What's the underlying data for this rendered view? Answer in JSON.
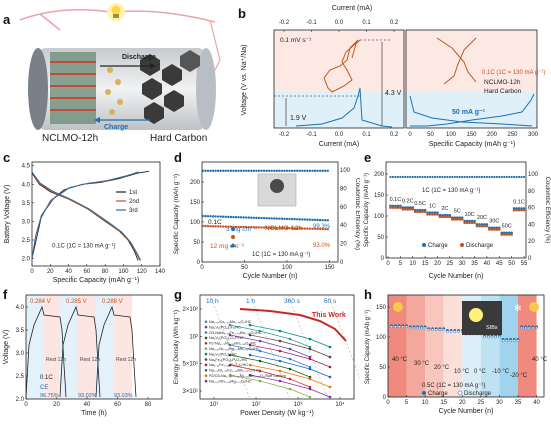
{
  "panel_labels": [
    "a",
    "b",
    "c",
    "d",
    "e",
    "f",
    "g",
    "h"
  ],
  "panel_a": {
    "discharge": "Discharge",
    "charge": "Charge",
    "left_electrode": "NCLMO-12h",
    "right_electrode": "Hard Carbon",
    "bulb_icon": "lightbulb-icon"
  },
  "chart_data": [
    {
      "id": "b",
      "type": "line",
      "title": "",
      "top_xlabel": "Current (mA)",
      "top_xticks": [
        "-0.2",
        "-0.1",
        "0.0",
        "0.1",
        "0.2"
      ],
      "xlabel_left": "Current (mA)",
      "xticks_left": [
        "-0.2",
        "-0.1",
        "0.0",
        "0.1",
        "0.2"
      ],
      "xlabel_right": "Specific Capacity (mAh g⁻¹)",
      "xticks_right": [
        "0",
        "50",
        "100",
        "150",
        "200",
        "250",
        "300"
      ],
      "ylabel": "Voltage (V vs. Na⁺/Na)",
      "annotations": [
        "0.1 mV s⁻¹",
        "4.3 V",
        "1.9 V",
        "0.1C (1C = 130 mA g⁻¹)",
        "NCLMO-12h",
        "Hard Carbon",
        "50 mA g⁻¹"
      ],
      "series": [
        {
          "name": "NCLMO-12h CV",
          "color": "#c8511e"
        },
        {
          "name": "Hard Carbon CV",
          "color": "#1f6fb2"
        }
      ]
    },
    {
      "id": "c",
      "type": "line",
      "xlabel": "Specific Capacity (mAh g⁻¹)",
      "ylabel": "Battery Voltage (V)",
      "xticks": [
        "0",
        "20",
        "40",
        "60",
        "80",
        "100",
        "120",
        "140"
      ],
      "yticks": [
        "2.0",
        "2.5",
        "3.0",
        "3.5",
        "4.0",
        "4.5"
      ],
      "xlim": [
        0,
        140
      ],
      "ylim": [
        1.8,
        4.6
      ],
      "annotation": "0.1C (1C = 130 mA g⁻¹)",
      "series": [
        {
          "name": "1st",
          "color": "#222222",
          "charge": [
            [
              0,
              2.0
            ],
            [
              5,
              2.55
            ],
            [
              10,
              3.1
            ],
            [
              20,
              3.55
            ],
            [
              35,
              3.85
            ],
            [
              55,
              4.0
            ],
            [
              75,
              4.05
            ],
            [
              95,
              4.15
            ],
            [
              115,
              4.3
            ],
            [
              128,
              4.35
            ]
          ],
          "discharge": [
            [
              0,
              4.3
            ],
            [
              8,
              4.0
            ],
            [
              20,
              3.8
            ],
            [
              40,
              3.6
            ],
            [
              60,
              3.35
            ],
            [
              80,
              3.0
            ],
            [
              95,
              2.75
            ],
            [
              105,
              2.5
            ],
            [
              112,
              2.2
            ],
            [
              116,
              1.95
            ]
          ]
        },
        {
          "name": "2nd",
          "color": "#c8511e",
          "charge": [
            [
              0,
              2.0
            ],
            [
              4,
              2.6
            ],
            [
              10,
              3.15
            ],
            [
              22,
              3.6
            ],
            [
              40,
              3.9
            ],
            [
              60,
              4.02
            ],
            [
              80,
              4.08
            ],
            [
              100,
              4.2
            ],
            [
              116,
              4.33
            ]
          ],
          "discharge": [
            [
              0,
              4.33
            ],
            [
              8,
              4.02
            ],
            [
              22,
              3.8
            ],
            [
              42,
              3.58
            ],
            [
              62,
              3.32
            ],
            [
              82,
              2.98
            ],
            [
              97,
              2.72
            ],
            [
              107,
              2.45
            ],
            [
              114,
              2.15
            ],
            [
              118,
              1.95
            ]
          ]
        },
        {
          "name": "3rd",
          "color": "#1f6fb2",
          "charge": [
            [
              0,
              2.0
            ],
            [
              4,
              2.62
            ],
            [
              11,
              3.18
            ],
            [
              24,
              3.62
            ],
            [
              42,
              3.92
            ],
            [
              62,
              4.03
            ],
            [
              82,
              4.1
            ],
            [
              102,
              4.22
            ],
            [
              117,
              4.33
            ]
          ],
          "discharge": [
            [
              0,
              4.33
            ],
            [
              9,
              4.03
            ],
            [
              23,
              3.81
            ],
            [
              43,
              3.59
            ],
            [
              63,
              3.33
            ],
            [
              83,
              2.99
            ],
            [
              98,
              2.72
            ],
            [
              108,
              2.44
            ],
            [
              115,
              2.14
            ],
            [
              119,
              1.95
            ]
          ]
        }
      ]
    },
    {
      "id": "d",
      "type": "scatter",
      "xlabel": "Cycle Number (n)",
      "ylabel": "Specific Capacity (mAh g⁻¹)",
      "ylabel_right": "Coulombic Efficiency (%)",
      "xticks": [
        "0",
        "50",
        "100",
        "150"
      ],
      "yticks": [
        "0",
        "50",
        "100",
        "150",
        "200"
      ],
      "yticks_right": [
        "0",
        "20",
        "40",
        "60",
        "80",
        "100"
      ],
      "xlim": [
        0,
        160
      ],
      "ylim": [
        0,
        250
      ],
      "annotations": [
        "0.1C",
        "3 mg cm⁻²",
        "12 mg cm⁻²",
        "NCLMO-12h",
        "1C (1C = 130 mA g⁻¹)",
        "99.3%",
        "93.0%"
      ],
      "series": [
        {
          "name": "Charge",
          "color": "#1f6fb2",
          "marker": "circle"
        },
        {
          "name": "Discharge",
          "color": "#c8511e",
          "marker": "circle"
        },
        {
          "name": "Coulombic Efficiency",
          "color": "#1f6fb2",
          "marker": "triangle"
        }
      ],
      "capacity_3mg": {
        "start": 115,
        "end": 104
      },
      "capacity_12mg": {
        "start": 90,
        "end": 82
      },
      "ce": 99.3
    },
    {
      "id": "e",
      "type": "scatter",
      "xlabel": "Cycle Number (n)",
      "ylabel": "Specific Capacity (mAh g⁻¹)",
      "ylabel_right": "Coulombic Efficiency (%)",
      "xticks": [
        "0",
        "5",
        "10",
        "15",
        "20",
        "25",
        "30",
        "35",
        "40",
        "45",
        "50",
        "55"
      ],
      "yticks": [
        "0",
        "50",
        "100",
        "150",
        "200"
      ],
      "yticks_right": [
        "0",
        "20",
        "40",
        "60",
        "80",
        "100"
      ],
      "annotation": "1C (1C = 130 mA g⁻¹)",
      "rate_labels": [
        "0.1C",
        "0.2C",
        "0.5C",
        "1C",
        "2C",
        "5C",
        "10C",
        "20C",
        "30C",
        "50C",
        "0.1C"
      ],
      "legend": [
        "Charge",
        "Discharge"
      ],
      "rate_values": [
        122,
        118,
        112,
        106,
        100,
        94,
        86,
        78,
        70,
        58,
        116
      ]
    },
    {
      "id": "f",
      "type": "line",
      "xlabel": "Time (h)",
      "ylabel": "Voltage (V)",
      "xticks": [
        "0",
        "20",
        "40",
        "60",
        "80"
      ],
      "yticks": [
        "2.0",
        "2.5",
        "3.0",
        "3.5",
        "4.0"
      ],
      "annotations": [
        "0.284 V",
        "0.285 V",
        "0.288 V",
        "Rest 12h",
        "Rest 12h",
        "Rest 12h",
        "0.1C",
        "CE",
        "96.75%",
        "93.02%",
        "93.03%"
      ]
    },
    {
      "id": "g",
      "type": "scatter",
      "xlabel": "Power Density (W kg⁻¹)",
      "ylabel": "Energy Density (Wh kg⁻¹)",
      "xticks": [
        "10¹",
        "10²",
        "10³",
        "10⁴"
      ],
      "yticks": [
        "3×10¹",
        "5×10¹",
        "10²",
        "2×10²"
      ],
      "time_labels": [
        "10 h",
        "1 h",
        "360 s",
        "60 s"
      ],
      "this_work": "This Work",
      "legend": [
        "Na₀.₆₇Co₀.₂₅Mn₀.₇₅O₂/HC",
        "Na₃V₂(PO₄)₂F₃/HC",
        "O3-NaNi₀.₃₃Fe₀.₃₃Mn₀.₃₃O₂/HC",
        "Na₃V₂(PO₄)₂O₂F/HC",
        "P2-Na₀.₇₂Ni₀.₃₂Mn₀.₆₈O₂/HC",
        "Na₀.₆₇Ni₀.₂₃Mg₀.₁Mn₀.₆₇O₂/HC",
        "Na₃V₂(PO₄)₃/HC",
        "Na₄Fe₃(PO₄)₂P₂O₇/HC",
        "Na₃.₁₂Fe₂.₄₄(P₂O₇)₂/HC",
        "Na₀.₉Ni₀.₃₃Fe₀.₃₃Mn₀.₃₃O₂/HC",
        "P2/O3-Na₀.₇₈Li₀.₁₈Ni₀.₂₅Mn₀.₅₈O₂/Soft Carbon",
        "Na₀.₆₇Mn₀.₈₉Mg₀.₁₁O₂/HC"
      ],
      "legend_colors": [
        "#2a9d8f",
        "#6c3fa0",
        "#3a7bd5",
        "#1b5e20",
        "#c62828",
        "#7cb342",
        "#00838f",
        "#5d4037",
        "#ad1457",
        "#1565c0",
        "#ef6c00",
        "#8e24aa"
      ]
    },
    {
      "id": "h",
      "type": "scatter",
      "xlabel": "Cycle Number (n)",
      "ylabel": "Specific Capacity (mAh g⁻¹)",
      "xticks": [
        "0",
        "5",
        "10",
        "15",
        "20",
        "25",
        "30",
        "35",
        "40"
      ],
      "yticks": [
        "0",
        "50",
        "100",
        "150"
      ],
      "xlim": [
        0,
        42
      ],
      "ylim": [
        0,
        170
      ],
      "temperatures": [
        "40 °C",
        "30 °C",
        "20 °C",
        "10 °C",
        "0 °C",
        "-10 °C",
        "-20 °C",
        "40 °C"
      ],
      "annotation": "0.5C (1C = 130 mA g⁻¹)",
      "legend": [
        "Charge",
        "Discharge"
      ],
      "inset_label": "SIBs",
      "segment_values": [
        118,
        116,
        113,
        110,
        106,
        101,
        95,
        116
      ]
    }
  ]
}
